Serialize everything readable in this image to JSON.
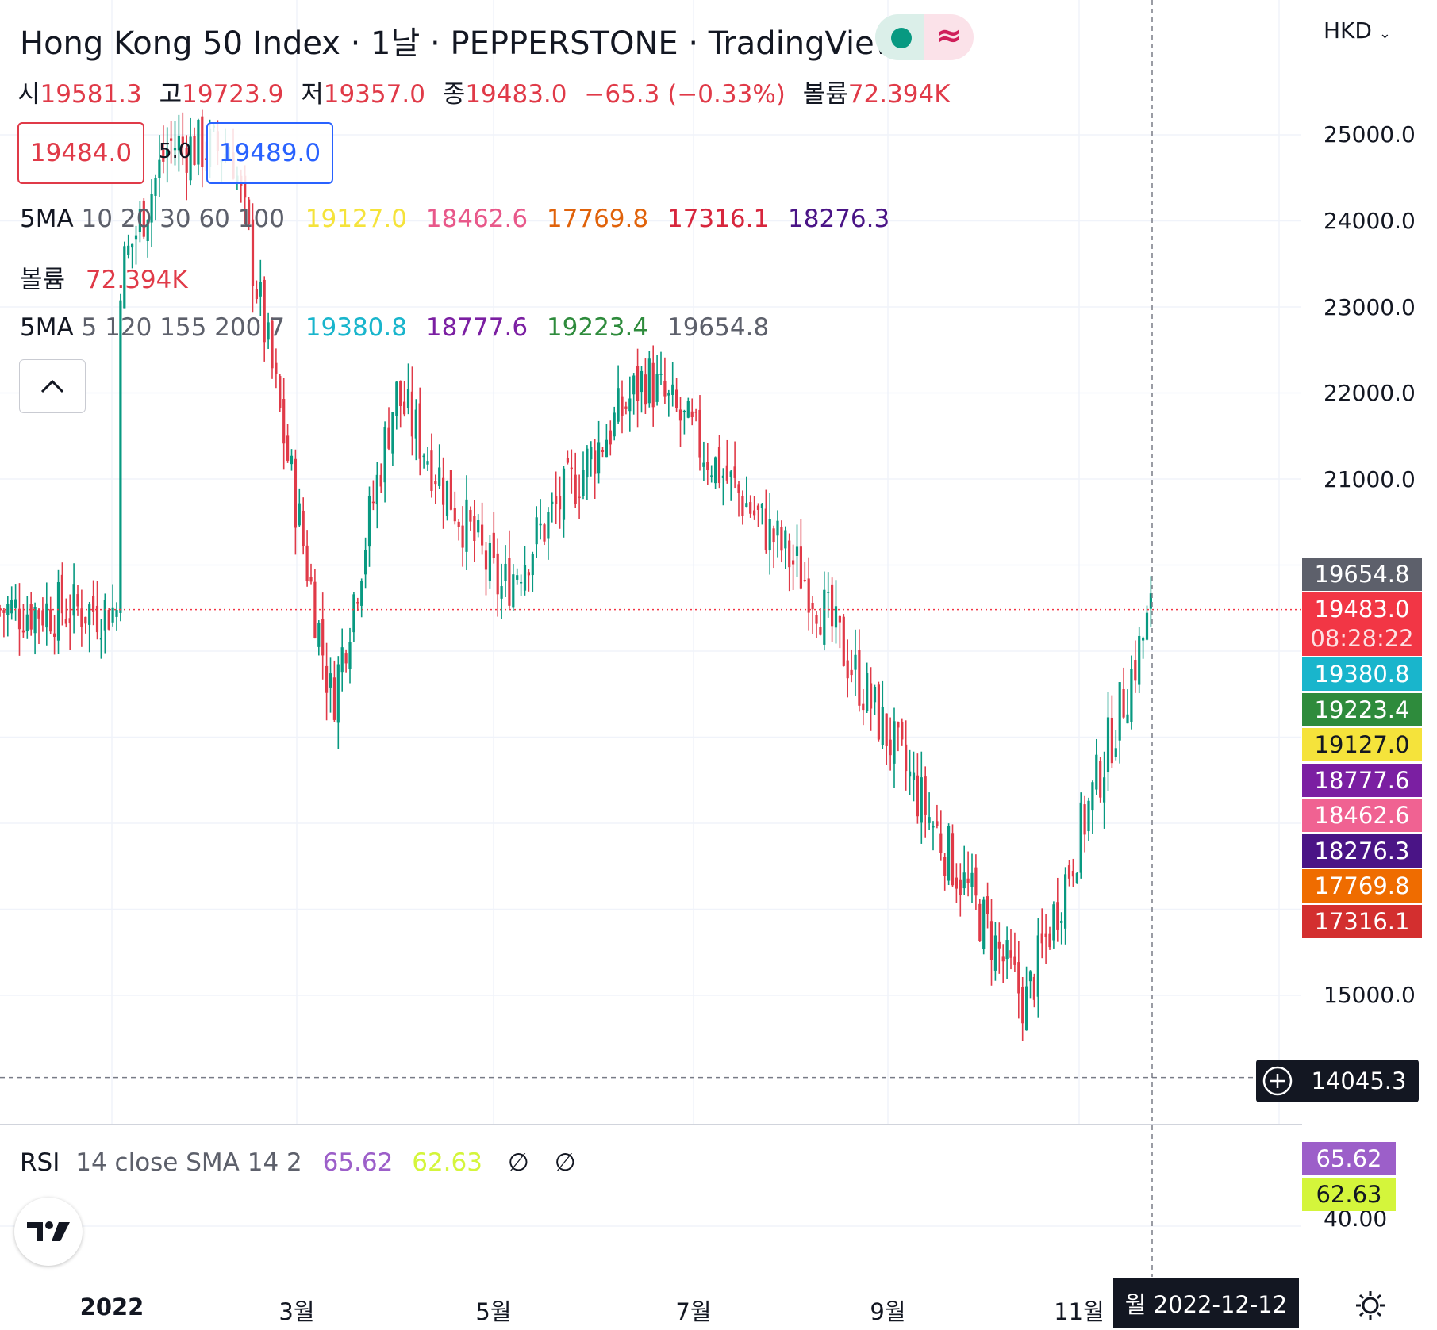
{
  "header": {
    "title": "Hong Kong 50 Index · 1날 · PEPPERSTONE · TradingView",
    "ohlc": {
      "open_label": "시",
      "open": "19581.3",
      "high_label": "고",
      "high": "19723.9",
      "low_label": "저",
      "low": "19357.0",
      "close_label": "종",
      "close": "19483.0",
      "change": "−65.3 (−0.33%)",
      "volume_label": "볼륨",
      "volume": "72.394K"
    },
    "sell_price": "19484.0",
    "spread": "5.0",
    "buy_price": "19489.0"
  },
  "indicators": [
    {
      "name": "5MA",
      "params": "10 20 30 60 100",
      "values": [
        {
          "text": "19127.0",
          "color": "#f5e33b"
        },
        {
          "text": "18462.6",
          "color": "#e8588a"
        },
        {
          "text": "17769.8",
          "color": "#e0620a"
        },
        {
          "text": "17316.1",
          "color": "#d7263d"
        },
        {
          "text": "18276.3",
          "color": "#4a1486"
        }
      ]
    },
    {
      "name": "볼륨",
      "params": "",
      "values": [
        {
          "text": "72.394K",
          "color": "#e03a48"
        }
      ]
    },
    {
      "name": "5MA",
      "params": "5 120 155 200 7",
      "values": [
        {
          "text": "19380.8",
          "color": "#19b5cc"
        },
        {
          "text": "18777.6",
          "color": "#7b1fa2"
        },
        {
          "text": "19223.4",
          "color": "#2e8b3c"
        },
        {
          "text": "19654.8",
          "color": "#5d606b"
        }
      ]
    }
  ],
  "price_axis": {
    "currency": "HKD",
    "ticks": [
      "25000.0",
      "24000.0",
      "23000.0",
      "22000.0",
      "21000.0",
      "15000.0"
    ],
    "labels": [
      {
        "text": "19654.8",
        "color": "#5d606b"
      },
      {
        "text": "19483.0",
        "sub": "08:28:22",
        "color": "#f23645"
      },
      {
        "text": "19380.8",
        "color": "#19b5cc"
      },
      {
        "text": "19223.4",
        "color": "#2e8b3c"
      },
      {
        "text": "19127.0",
        "color": "#f5e33b",
        "fg": "#131722"
      },
      {
        "text": "18777.6",
        "color": "#7b1fa2"
      },
      {
        "text": "18462.6",
        "color": "#f06292"
      },
      {
        "text": "18276.3",
        "color": "#4a1486"
      },
      {
        "text": "17769.8",
        "color": "#ef6c00"
      },
      {
        "text": "17316.1",
        "color": "#d32f2f"
      }
    ],
    "crosshair_price": "14045.3"
  },
  "rsi": {
    "name": "RSI",
    "params": "14 close SMA 14 2",
    "value1": "65.62",
    "value2": "62.63",
    "empty1": "∅",
    "empty2": "∅",
    "color1": "#9c5fc9",
    "color2": "#d4f53b",
    "axis_tick": "40.00"
  },
  "time_axis": {
    "ticks": [
      "2022",
      "3월",
      "5월",
      "7월",
      "9월",
      "11월"
    ],
    "crosshair_date": "월 2022-12-12"
  },
  "colors": {
    "up": "#089981",
    "down": "#e03a48"
  },
  "chart_data": {
    "type": "candlestick",
    "symbol": "Hong Kong 50 Index",
    "interval": "1날",
    "y_range": [
      14045.3,
      25500
    ],
    "closes_approx": [
      {
        "x": "2022-01-03",
        "y": 23300
      },
      {
        "x": "2022-01-20",
        "y": 24900
      },
      {
        "x": "2022-02-10",
        "y": 24800
      },
      {
        "x": "2022-03-15",
        "y": 18400
      },
      {
        "x": "2022-04-05",
        "y": 22000
      },
      {
        "x": "2022-05-10",
        "y": 19700
      },
      {
        "x": "2022-06-27",
        "y": 22200
      },
      {
        "x": "2022-08-20",
        "y": 19800
      },
      {
        "x": "2022-10-31",
        "y": 14900
      },
      {
        "x": "2022-12-12",
        "y": 19483
      }
    ],
    "last": {
      "open": 19581.3,
      "high": 19723.9,
      "low": 19357.0,
      "close": 19483.0,
      "volume": "72.394K"
    }
  }
}
